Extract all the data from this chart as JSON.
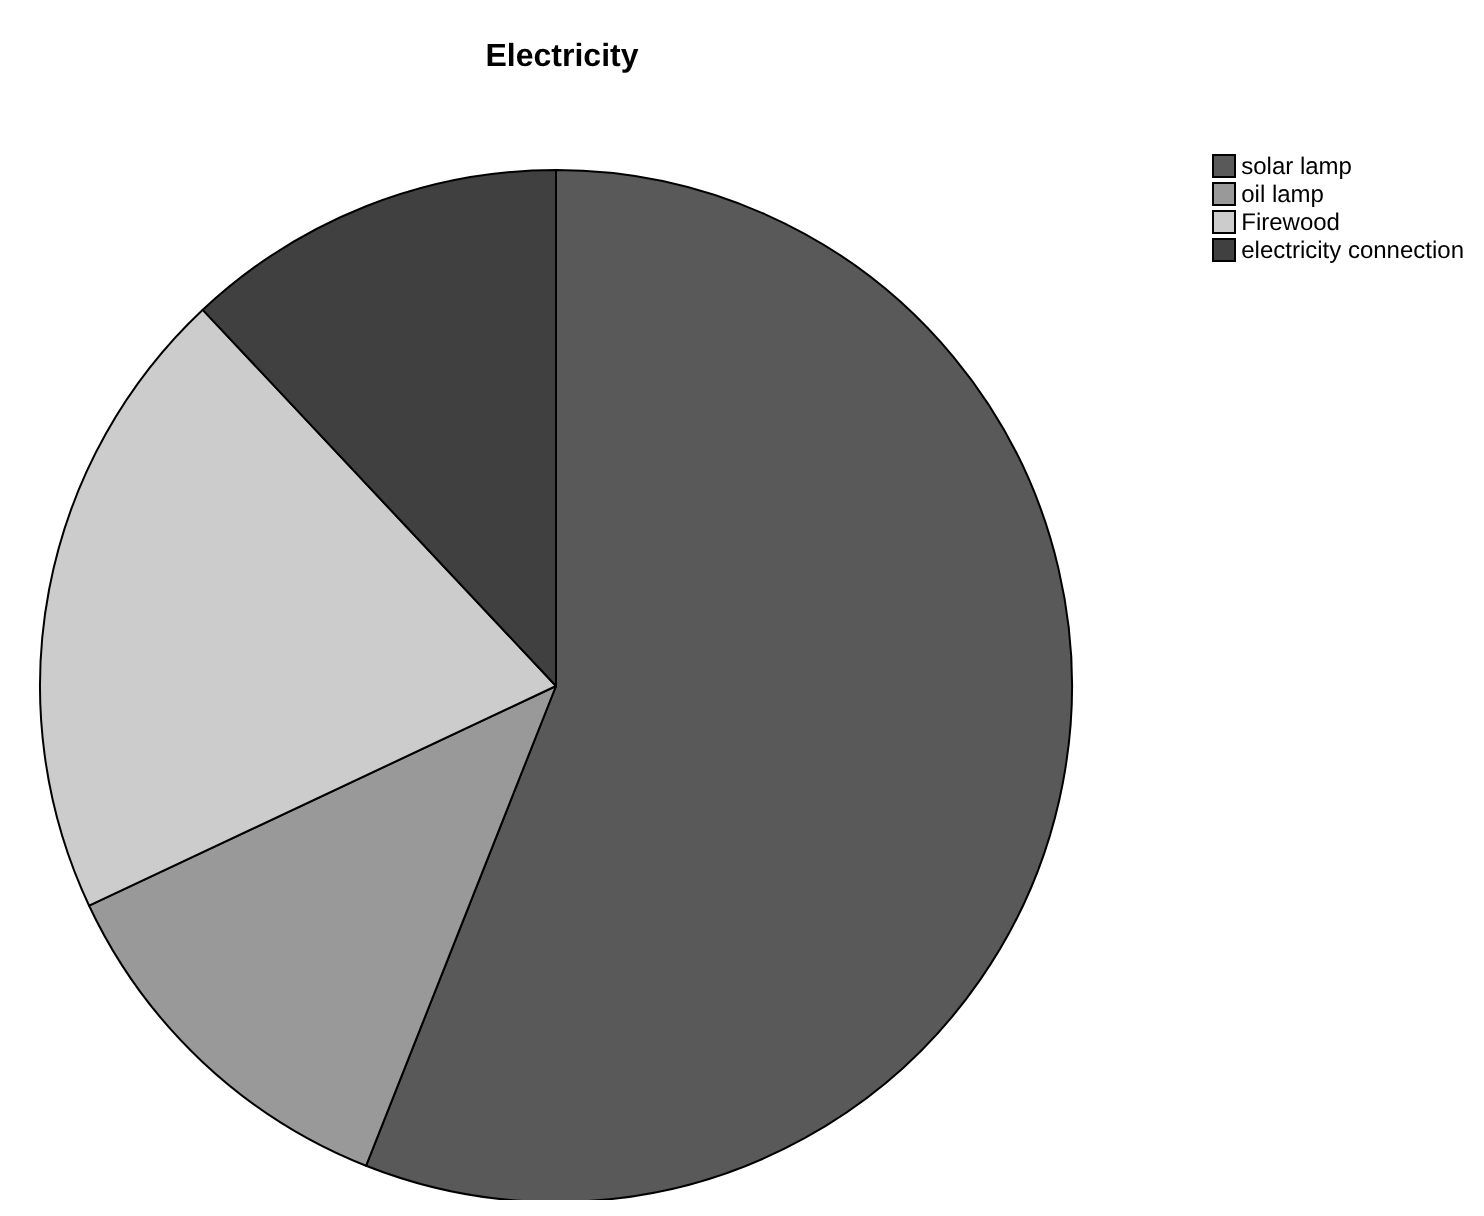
{
  "chart_data": {
    "type": "pie",
    "title": "Electricity",
    "categories": [
      "solar lamp",
      "oil lamp",
      "Firewood",
      "electricity connection"
    ],
    "values": [
      56,
      12,
      20,
      12
    ],
    "colors": [
      "#595959",
      "#999999",
      "#cccccc",
      "#404040"
    ],
    "legend": "top right"
  }
}
